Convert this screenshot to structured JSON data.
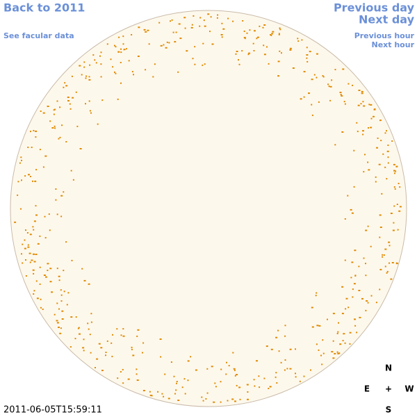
{
  "navigation": {
    "back_to_year": "Back to 2011",
    "see_facular_data": "See facular data",
    "previous_day": "Previous day",
    "next_day": "Next day",
    "previous_hour": "Previous hour",
    "next_hour": "Next hour"
  },
  "timestamp": "2011-06-05T15:59:11",
  "compass": {
    "north": "N",
    "east": "E",
    "center": "+",
    "west": "W",
    "south": "S"
  }
}
